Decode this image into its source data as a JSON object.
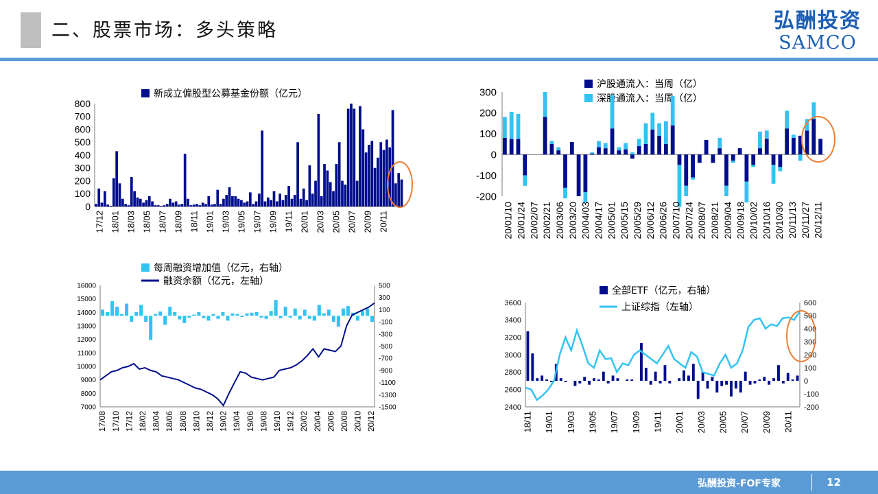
{
  "header": {
    "title": "二、股票市场：多头策略",
    "logo_cn": "弘酬投资",
    "logo_en": "SAMCO"
  },
  "footer": {
    "text": "弘酬投资-FOF专家",
    "page": "12"
  },
  "colors": {
    "navy": "#000e8c",
    "cyan": "#33c3f2",
    "orange": "#ed7d31",
    "accent": "#5b9bd5"
  },
  "chart_data": [
    {
      "type": "bar",
      "series": [
        {
          "name": "新成立偏股型公募基金份额（亿元）"
        }
      ],
      "ylim": [
        0,
        800
      ],
      "y_ticks": [
        "0",
        "100",
        "200",
        "300",
        "400",
        "500",
        "600",
        "700",
        "800"
      ],
      "x_ticks": [
        "17/12",
        "18/01",
        "18/03",
        "18/05",
        "18/07",
        "18/09",
        "18/11",
        "19/01",
        "19/03",
        "19/05",
        "19/07",
        "19/09",
        "19/11",
        "20/01",
        "20/03",
        "20/05",
        "20/07",
        "20/09",
        "20/11"
      ],
      "values": [
        20,
        140,
        30,
        120,
        15,
        5,
        220,
        430,
        180,
        60,
        20,
        10,
        230,
        120,
        70,
        60,
        30,
        50,
        80,
        40,
        10,
        10,
        5,
        10,
        20,
        60,
        30,
        40,
        15,
        20,
        410,
        60,
        10,
        15,
        20,
        10,
        30,
        20,
        80,
        15,
        20,
        130,
        20,
        60,
        90,
        150,
        80,
        80,
        60,
        50,
        30,
        40,
        110,
        20,
        40,
        100,
        590,
        40,
        70,
        50,
        120,
        40,
        100,
        50,
        90,
        160,
        60,
        90,
        500,
        60,
        140,
        50,
        320,
        100,
        200,
        720,
        80,
        330,
        280,
        190,
        120,
        330,
        500,
        200,
        170,
        760,
        800,
        760,
        200,
        780,
        600,
        420,
        480,
        510,
        300,
        380,
        500,
        440,
        520,
        460,
        750,
        180,
        260,
        210
      ]
    },
    {
      "type": "bar",
      "series": [
        {
          "name": "沪股通流入：当周（亿）"
        },
        {
          "name": "深股通流入：当周（亿）"
        }
      ],
      "ylim": [
        -200,
        300
      ],
      "y_ticks": [
        "300",
        "200",
        "100",
        "0",
        "-100",
        "-200"
      ],
      "x_ticks": [
        "20/01/10",
        "20/01/24",
        "20/02/07",
        "20/02/21",
        "20/03/06",
        "20/03/20",
        "20/04/03",
        "20/04/17",
        "20/05/01",
        "20/05/15",
        "20/05/29",
        "20/06/12",
        "20/06/26",
        "20/07/10",
        "20/07/24",
        "20/08/07",
        "20/08/21",
        "20/09/04",
        "20/09/18",
        "20/10/02",
        "20/10/16",
        "20/10/30",
        "20/11/13",
        "20/11/27",
        "20/12/11"
      ],
      "sh": [
        80,
        75,
        75,
        -100,
        0,
        0,
        180,
        50,
        20,
        -160,
        60,
        -200,
        -180,
        5,
        35,
        30,
        125,
        20,
        25,
        -20,
        40,
        50,
        120,
        90,
        50,
        140,
        -50,
        -150,
        -110,
        -40,
        70,
        -40,
        30,
        -150,
        -30,
        30,
        -130,
        -50,
        30,
        75,
        -50,
        -60,
        125,
        80,
        90,
        115,
        170,
        75
      ],
      "sz": [
        100,
        130,
        120,
        -50,
        0,
        0,
        120,
        15,
        15,
        -50,
        0,
        0,
        -50,
        5,
        30,
        25,
        160,
        15,
        30,
        10,
        35,
        100,
        80,
        60,
        110,
        140,
        -200,
        -50,
        -10,
        0,
        0,
        0,
        50,
        -50,
        -10,
        0,
        -100,
        -10,
        80,
        40,
        -90,
        -20,
        85,
        15,
        -30,
        55,
        80,
        0
      ]
    },
    {
      "type": "bar",
      "series": [
        {
          "name": "每周融资增加值（亿元，右轴）"
        },
        {
          "name": "融资余额（亿元，左轴）"
        }
      ],
      "y_left_ticks": [
        "16000",
        "15000",
        "14000",
        "13000",
        "12000",
        "11000",
        "10000",
        "9000",
        "8000",
        "7000"
      ],
      "y_right_ticks": [
        "500",
        "300",
        "100",
        "-100",
        "-300",
        "-500",
        "-700",
        "-900",
        "-1100",
        "-1300",
        "-1500"
      ],
      "x_ticks": [
        "17/08",
        "17/10",
        "17/12",
        "18/02",
        "18/04",
        "18/06",
        "18/08",
        "18/10",
        "18/12",
        "19/02",
        "19/04",
        "19/06",
        "19/08",
        "19/10",
        "19/12",
        "20/02",
        "20/04",
        "20/06",
        "20/08",
        "20/10",
        "20/12"
      ],
      "balance": [
        9000,
        9300,
        9600,
        9700,
        9900,
        10000,
        10200,
        9800,
        9900,
        9700,
        9600,
        9300,
        9200,
        9100,
        9000,
        8800,
        8600,
        8400,
        8300,
        8100,
        7900,
        7600,
        7100,
        8000,
        8800,
        9600,
        9500,
        9200,
        9100,
        9000,
        9100,
        9200,
        9700,
        9800,
        9900,
        10100,
        10400,
        10800,
        11300,
        10700,
        11300,
        11200,
        11100,
        11500,
        13000,
        13800,
        14000,
        14200,
        14400,
        14700
      ],
      "flow": [
        100,
        60,
        240,
        150,
        30,
        200,
        -100,
        60,
        180,
        -100,
        -400,
        30,
        70,
        -150,
        150,
        60,
        -60,
        -120,
        -30,
        20,
        60,
        -40,
        -80,
        30,
        -50,
        60,
        -80,
        40,
        30,
        -20,
        40,
        50,
        60,
        -30,
        -50,
        80,
        260,
        -40,
        150,
        -30,
        120,
        -60,
        100,
        -50,
        -80,
        180,
        40,
        100,
        -100,
        -180,
        120,
        160,
        50,
        -80,
        80,
        120,
        -100
      ]
    },
    {
      "type": "bar",
      "series": [
        {
          "name": "全部ETF（亿元，右轴）"
        },
        {
          "name": "上证综指（左轴）"
        }
      ],
      "y_left_ticks": [
        "3600",
        "3400",
        "3200",
        "3000",
        "2800",
        "2600",
        "2400"
      ],
      "y_right_ticks": [
        "600",
        "500",
        "400",
        "300",
        "200",
        "100",
        "0",
        "-100",
        "-200"
      ],
      "x_ticks": [
        "18/11",
        "19/01",
        "19/03",
        "19/05",
        "19/07",
        "19/09",
        "19/11",
        "20/01",
        "20/03",
        "20/05",
        "20/07",
        "20/09",
        "20/11"
      ],
      "index": [
        2620,
        2600,
        2480,
        2530,
        2600,
        2700,
        3000,
        3200,
        3050,
        3280,
        3100,
        2900,
        2850,
        3050,
        2950,
        2960,
        2800,
        2900,
        2880,
        3000,
        3050,
        3000,
        2950,
        2900,
        3000,
        3100,
        2950,
        2900,
        2850,
        3030,
        2980,
        2800,
        2780,
        2760,
        2900,
        3000,
        2850,
        2900,
        3050,
        3320,
        3400,
        3420,
        3300,
        3350,
        3330,
        3420,
        3430,
        3400,
        3500
      ],
      "etf": [
        380,
        210,
        20,
        40,
        10,
        -10,
        130,
        20,
        -10,
        0,
        -40,
        -20,
        30,
        -30,
        20,
        10,
        70,
        -20,
        40,
        20,
        0,
        10,
        10,
        0,
        290,
        100,
        -30,
        70,
        -20,
        120,
        -20,
        0,
        20,
        80,
        40,
        130,
        -140,
        70,
        -60,
        30,
        -90,
        -40,
        -30,
        -120,
        -60,
        -90,
        70,
        -30,
        -20,
        10,
        30,
        -30,
        20,
        120,
        -20,
        60,
        10,
        40
      ]
    }
  ]
}
